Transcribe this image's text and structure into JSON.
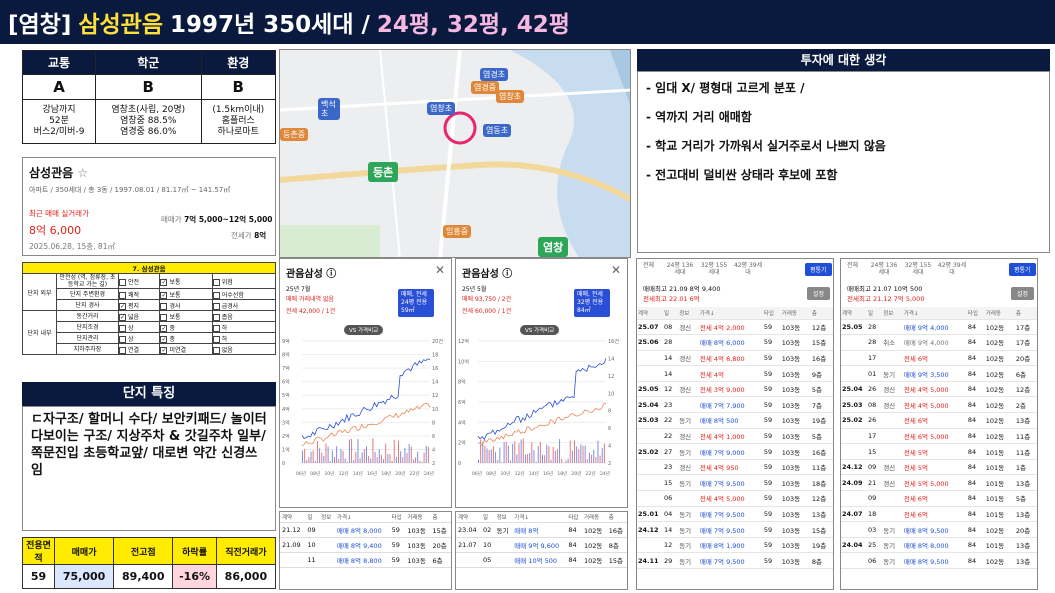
{
  "title": {
    "tag": "[염창]",
    "name": "삼성관음",
    "info": "1997년 350세대 /",
    "sizes": "24평, 32평, 42평"
  },
  "summary": {
    "headers": [
      "교통",
      "학군",
      "환경"
    ],
    "grades": [
      "A",
      "B",
      "B"
    ],
    "details": [
      [
        "강남까지",
        "52분",
        "버스2/미버-9"
      ],
      [
        "염창초(사립, 20명)",
        "염창중 88.5%",
        "염경중 86.0%"
      ],
      [
        "(1.5km이내)",
        "홈플러스",
        "하나로마트"
      ]
    ]
  },
  "apt": {
    "name": "삼성관음",
    "star": "☆",
    "desc": "아파트 / 350세대 / 총 3동 / 1997.08.01 / 81.17㎡ ~ 141.57㎡",
    "recent_label": "최근 매매 실거래가",
    "recent_price": "8억 6,000",
    "recent_date": "2025.06.28, 15층, 81㎡",
    "sale_label": "매매가",
    "sale_price": "7억 5,000~12억 5,000",
    "jeonse_label": "전세가",
    "jeonse_price": "8억"
  },
  "checklist": {
    "title": "7. 삼성관음",
    "rows": [
      {
        "group": "단지 외부",
        "item": "안전성 (역, 정류장, 초등학교 가는 길)",
        "c": [
          "",
          "✓",
          "",
          ""
        ],
        "opts": [
          "안전",
          "보통",
          "",
          "위험"
        ]
      },
      {
        "group": "",
        "item": "단지 주변환경",
        "c": [
          "",
          "✓",
          "",
          ""
        ],
        "opts": [
          "쾌적",
          "보통",
          "",
          "어수선함"
        ]
      },
      {
        "group": "",
        "item": "단지 경사",
        "c": [
          "✓",
          "",
          "",
          ""
        ],
        "opts": [
          "평지",
          "경사",
          "",
          "급경사"
        ]
      },
      {
        "group": "단지 내부",
        "item": "동간거리",
        "c": [
          "✓",
          "",
          "",
          ""
        ],
        "opts": [
          "넓음",
          "보통",
          "",
          "좁음"
        ]
      },
      {
        "group": "",
        "item": "단지조경",
        "c": [
          "",
          "✓",
          "",
          ""
        ],
        "opts": [
          "상",
          "중",
          "",
          "하"
        ]
      },
      {
        "group": "",
        "item": "단지관리",
        "c": [
          "",
          "✓",
          "",
          ""
        ],
        "opts": [
          "상",
          "중",
          "",
          "하"
        ]
      },
      {
        "group": "",
        "item": "지하주차장",
        "c": [
          "",
          "✓",
          "",
          ""
        ],
        "opts": [
          "연결",
          "미연결",
          "",
          "없음"
        ]
      }
    ]
  },
  "danji": {
    "header": "단지 특징",
    "text": "ㄷ자구조/ 할머니 수다/ 보안키패드/ 놀이터 다보이는 구조/ 지상주차 & 갓길주차 일부/ 쪽문진입 초등학교앞/ 대로변 약간 신경쓰임"
  },
  "price": {
    "headers": [
      "전용면적",
      "매매가",
      "전고점",
      "하락률",
      "직전거래가"
    ],
    "values": [
      "59",
      "75,000",
      "89,400",
      "-16%",
      "86,000"
    ]
  },
  "map": {
    "labels": [
      "염경초",
      "염창초",
      "백석초",
      "염창초",
      "염동초",
      "등촌",
      "염창",
      "염경중",
      "등촌중",
      "임흥중"
    ]
  },
  "invest": {
    "header": "투자에 대한 생각",
    "lines": [
      "- 임대 X/ 평형대 고르게 분포 /",
      "- 역까지 거리 애매함",
      "- 학교 거리가 가까워서 실거주로서 나쁘지 않음",
      "- 전고대비 덜비싼 상태라 후보에 포함"
    ]
  },
  "chart1": {
    "name": "관음삼성 ⓘ",
    "close": "✕",
    "date": "25년 7월",
    "l1": "매매 거래내역 없음",
    "l2": "전세 42,000 / 1건",
    "pill": "VS 가격비교",
    "sel": "매매, 전세 24평",
    "pct": "전용 59㎡"
  },
  "chart2": {
    "name": "관음삼성 ⓘ",
    "close": "✕",
    "date": "25년 5월",
    "l1": "매매 93,750 / 2건",
    "l2": "전세 60,000 / 1건",
    "pill": "VS 가격비교",
    "sel": "매매, 전세 32평",
    "pct": "전용 84㎡"
  },
  "chart_data": [
    {
      "type": "line",
      "y_left": [
        "9억",
        "8억",
        "7억",
        "6억",
        "5억",
        "4억",
        "3억",
        "2억",
        "1억",
        "0"
      ],
      "y_right": [
        "20건",
        "18",
        "16",
        "14",
        "12",
        "10",
        "8",
        "6",
        "4",
        "2"
      ],
      "x": [
        "06년",
        "08년",
        "10년",
        "12년",
        "14년",
        "16년",
        "18년",
        "20년",
        "22년",
        "24년"
      ]
    },
    {
      "type": "line",
      "y_left": [
        "12억",
        "10억",
        "8억",
        "6억",
        "4억",
        "2억",
        "0"
      ],
      "y_right": [
        "16건",
        "14",
        "12",
        "10",
        "8",
        "6",
        "4",
        "2"
      ],
      "x": [
        "06년",
        "08년",
        "10년",
        "12년",
        "14년",
        "16년",
        "18년",
        "20년",
        "22년",
        "24년"
      ]
    }
  ],
  "tx1": {
    "head": [
      "계약",
      "일",
      "정보",
      "가격↓",
      "타입",
      "거래동",
      "층"
    ],
    "rows": [
      [
        "21.12",
        "09",
        "",
        "매매 8억 8,000",
        "59",
        "103동",
        "15층"
      ],
      [
        "21.09",
        "10",
        "",
        "매매 8억 9,400",
        "59",
        "103동",
        "20층"
      ],
      [
        "",
        "11",
        "",
        "매매 8억 8,800",
        "59",
        "103동",
        "6층"
      ]
    ],
    "tag": "최고가"
  },
  "tx2": {
    "head": [
      "계약",
      "일",
      "정보",
      "가격↓",
      "타입",
      "거래동",
      "층"
    ],
    "rows": [
      [
        "23.04",
        "02",
        "동기",
        "매매 8억",
        "84",
        "102동",
        "16층"
      ],
      [
        "21.07",
        "10",
        "",
        "매매 9억 9,600",
        "84",
        "102동",
        "8층"
      ],
      [
        "",
        "05",
        "",
        "매매 10억 500",
        "84",
        "102동",
        "15층"
      ]
    ],
    "tag": "최고가"
  },
  "list1": {
    "tabs": [
      "전체",
      "24평 136세대",
      "32평 155세대",
      "42평 39세대"
    ],
    "tab_prefix": [
      "면적"
    ],
    "btn": "평통기",
    "info1": "매매최고 21.09 8억 9,400",
    "info2": "전세최고 22.01 6억",
    "btn2": "설정",
    "head": [
      "계약",
      "일",
      "정보",
      "가격↓",
      "타입",
      "거래동",
      "층"
    ],
    "rows": [
      [
        "25.07",
        "08",
        "갱신",
        "전세 4억 2,000",
        "59",
        "103동",
        "12층",
        "r"
      ],
      [
        "25.06",
        "28",
        "",
        "매매 8억 6,000",
        "59",
        "103동",
        "15층",
        "b"
      ],
      [
        "",
        "14",
        "갱신",
        "전세 4억 6,800",
        "59",
        "103동",
        "16층",
        "r"
      ],
      [
        "",
        "14",
        "",
        "전세 4억",
        "59",
        "103동",
        "9층",
        "r"
      ],
      [
        "25.05",
        "12",
        "갱신",
        "전세 3억 9,000",
        "59",
        "103동",
        "5층",
        "r"
      ],
      [
        "25.04",
        "23",
        "",
        "매매 7억 7,900",
        "59",
        "103동",
        "7층",
        "b"
      ],
      [
        "25.03",
        "22",
        "동기",
        "매매 8억 500",
        "59",
        "103동",
        "19층",
        "b"
      ],
      [
        "",
        "22",
        "갱신",
        "전세 4억 1,000",
        "59",
        "103동",
        "5층",
        "r"
      ],
      [
        "25.02",
        "27",
        "동기",
        "매매 7억 9,000",
        "59",
        "103동",
        "16층",
        "b"
      ],
      [
        "",
        "23",
        "갱신",
        "전세 4억 950",
        "59",
        "103동",
        "11층",
        "r"
      ],
      [
        "",
        "15",
        "동기",
        "매매 7억 9,500",
        "59",
        "103동",
        "18층",
        "b"
      ],
      [
        "",
        "06",
        "",
        "전세 4억 5,000",
        "59",
        "103동",
        "12층",
        "r"
      ],
      [
        "25.01",
        "04",
        "동기",
        "매매 7억 9,500",
        "59",
        "103동",
        "13층",
        "b"
      ],
      [
        "24.12",
        "14",
        "동기",
        "매매 7억 9,500",
        "59",
        "103동",
        "15층",
        "b"
      ],
      [
        "",
        "12",
        "동기",
        "매매 8억 1,900",
        "59",
        "103동",
        "19층",
        "b"
      ],
      [
        "24.11",
        "29",
        "동기",
        "매매 7억 9,500",
        "59",
        "103동",
        "8층",
        "b"
      ]
    ]
  },
  "list2": {
    "tabs": [
      "전체",
      "24평 136세대",
      "32평 155세대",
      "42평 39세대"
    ],
    "btn": "평통기",
    "info1": "매매최고 21.07 10억 500",
    "info2": "전세최고 21.12 7억 5,000",
    "btn2": "설정",
    "head": [
      "계약",
      "일",
      "정보",
      "가격↓",
      "타입",
      "거래동",
      "층"
    ],
    "rows": [
      [
        "25.05",
        "28",
        "",
        "매매 9억 4,000",
        "84",
        "102동",
        "17층",
        "b"
      ],
      [
        "",
        "28",
        "취소",
        "매매 9억 4,000",
        "84",
        "102동",
        "17층",
        "g"
      ],
      [
        "",
        "17",
        "",
        "전세 6억",
        "84",
        "102동",
        "20층",
        "r"
      ],
      [
        "",
        "01",
        "동기",
        "매매 9억 3,500",
        "84",
        "102동",
        "6층",
        "b"
      ],
      [
        "25.04",
        "26",
        "갱신",
        "전세 4억 5,000",
        "84",
        "102동",
        "12층",
        "r"
      ],
      [
        "25.03",
        "08",
        "갱신",
        "전세 4억 5,000",
        "84",
        "102동",
        "2층",
        "r"
      ],
      [
        "25.02",
        "26",
        "",
        "전세 6억",
        "84",
        "102동",
        "13층",
        "r"
      ],
      [
        "",
        "17",
        "",
        "전세 6억 5,000",
        "84",
        "102동",
        "11층",
        "r"
      ],
      [
        "",
        "15",
        "",
        "전세 5억",
        "84",
        "101동",
        "11층",
        "r"
      ],
      [
        "24.12",
        "09",
        "갱신",
        "전세 5억",
        "84",
        "101동",
        "1층",
        "r"
      ],
      [
        "24.09",
        "21",
        "갱신",
        "전세 5억 5,000",
        "84",
        "101동",
        "13층",
        "r"
      ],
      [
        "",
        "09",
        "",
        "전세 6억",
        "84",
        "101동",
        "5층",
        "r"
      ],
      [
        "24.07",
        "18",
        "",
        "전세 6억",
        "84",
        "101동",
        "13층",
        "r"
      ],
      [
        "",
        "03",
        "동기",
        "매매 8억 9,500",
        "84",
        "102동",
        "20층",
        "b"
      ],
      [
        "24.04",
        "25",
        "동기",
        "매매 8억 8,000",
        "84",
        "101동",
        "13층",
        "b"
      ],
      [
        "",
        "06",
        "동기",
        "매매 8억 9,500",
        "84",
        "102동",
        "13층",
        "b"
      ]
    ]
  },
  "colors": {
    "navy": "#0a1a3f",
    "yellow": "#ffec00",
    "red": "#e0201a",
    "blue": "#1f4fd8",
    "pink": "#f5b8e0",
    "gold": "#ffe03a"
  }
}
